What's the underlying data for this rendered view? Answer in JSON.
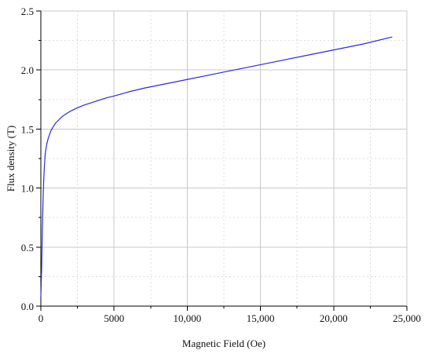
{
  "chart_data": {
    "type": "line",
    "title": "",
    "xlabel": "Magnetic Field (Oe)",
    "ylabel": "Flux density (T)",
    "xlim": [
      0,
      25000
    ],
    "ylim": [
      0,
      2.5
    ],
    "x_ticks": [
      0,
      5000,
      10000,
      15000,
      20000,
      25000
    ],
    "x_tick_labels": [
      "0",
      "5000",
      "10,000",
      "15,000",
      "20,000",
      "25,000"
    ],
    "y_ticks": [
      0,
      0.5,
      1.0,
      1.5,
      2.0,
      2.5
    ],
    "y_tick_labels": [
      "0.0",
      "0.5",
      "1.0",
      "1.5",
      "2.0",
      "2.5"
    ],
    "grid": true,
    "legend": "none",
    "series": [
      {
        "color": "#2a2ae0",
        "x": [
          0,
          50,
          100,
          150,
          200,
          250,
          300,
          400,
          500,
          700,
          1000,
          1500,
          2000,
          2500,
          3000,
          3500,
          4000,
          4500,
          5000,
          6000,
          7000,
          8000,
          9000,
          10000,
          12000,
          14000,
          16000,
          18000,
          20000,
          22000,
          24000
        ],
        "y": [
          0.08,
          0.3,
          0.62,
          0.9,
          1.08,
          1.2,
          1.29,
          1.37,
          1.42,
          1.49,
          1.55,
          1.61,
          1.65,
          1.68,
          1.705,
          1.725,
          1.745,
          1.765,
          1.78,
          1.815,
          1.845,
          1.87,
          1.895,
          1.92,
          1.97,
          2.02,
          2.07,
          2.12,
          2.17,
          2.22,
          2.28
        ]
      }
    ]
  }
}
